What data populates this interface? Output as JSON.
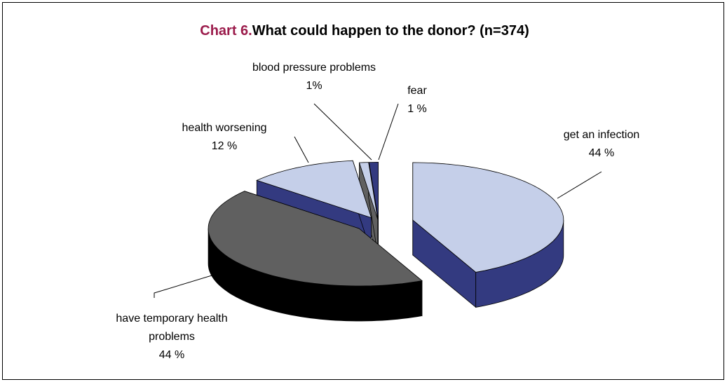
{
  "chart_data": {
    "type": "pie3d",
    "title": {
      "label": "Chart 6.",
      "text": "What could happen to the donor? (n=374)"
    },
    "categories": [
      "get an infection",
      "have temporary health problems",
      "health worsening",
      "blood pressure problems",
      "fear"
    ],
    "values": [
      44,
      44,
      12,
      1,
      1
    ],
    "value_labels": [
      "44 %",
      "44 %",
      "12 %",
      "1%",
      "1 %"
    ],
    "colors": [
      "#c5cfe9",
      "#606060",
      "#c5cfe9",
      "#c5cfe9",
      "#333a80"
    ],
    "side_colors": [
      "#333a80",
      "#000000",
      "#333a80",
      "#606060",
      "#333a80"
    ],
    "title_label_color": "#9b1b4b"
  }
}
